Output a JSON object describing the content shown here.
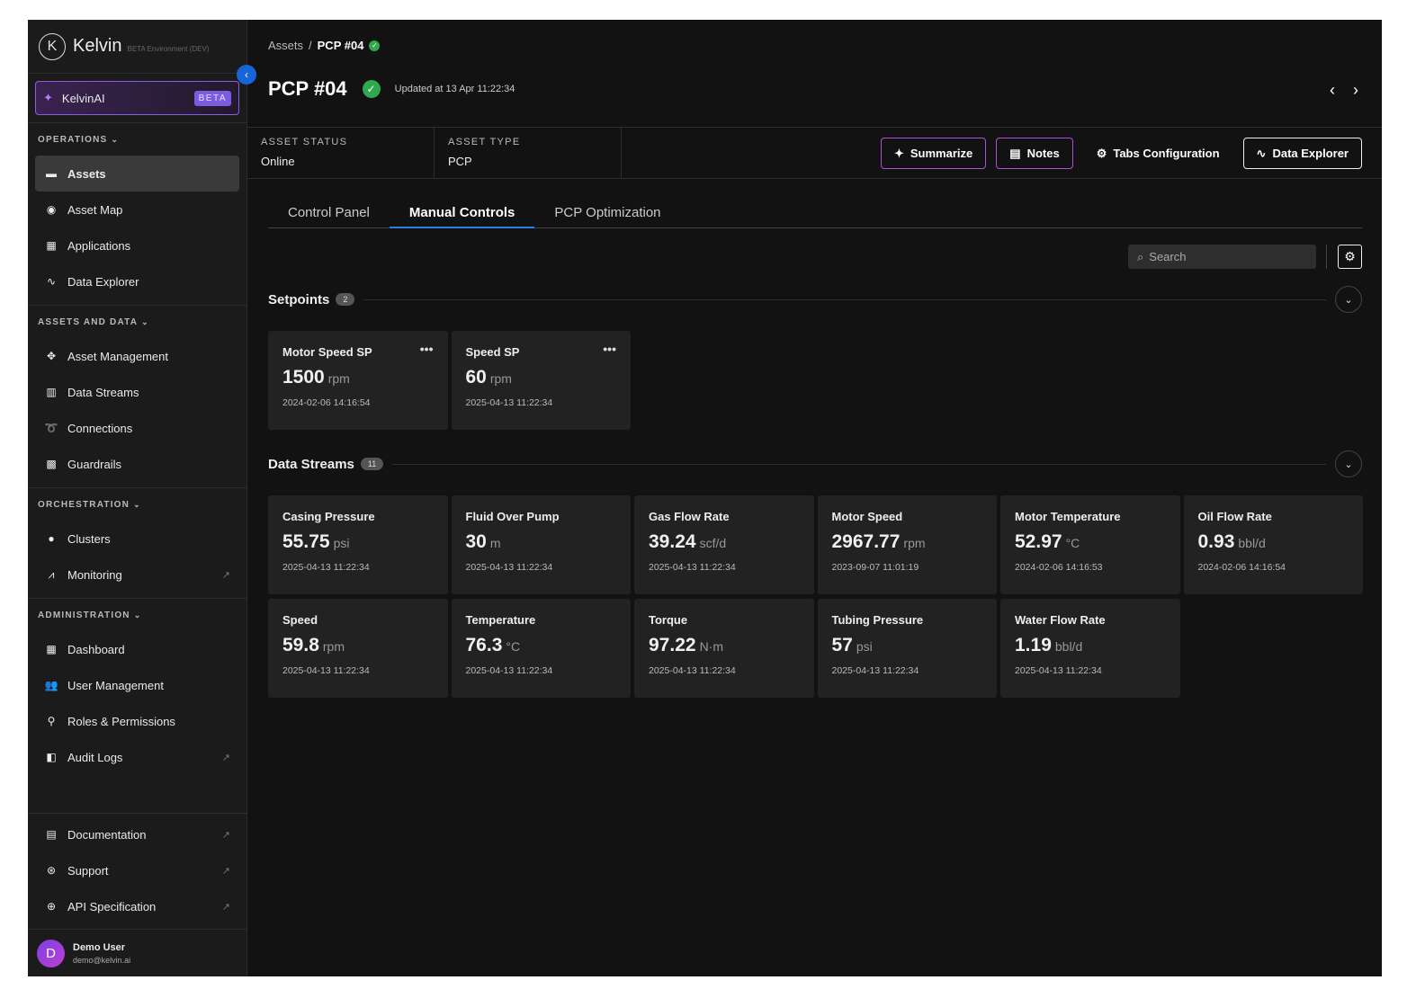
{
  "sidebar": {
    "brand": "Kelvin",
    "environment": "BETA Environment (DEV)",
    "ai": {
      "label": "KelvinAI",
      "badge": "BETA"
    },
    "sections": [
      {
        "title": "OPERATIONS",
        "items": [
          {
            "label": "Assets",
            "active": true
          },
          {
            "label": "Asset Map"
          },
          {
            "label": "Applications"
          },
          {
            "label": "Data Explorer"
          }
        ]
      },
      {
        "title": "ASSETS AND DATA",
        "items": [
          {
            "label": "Asset Management"
          },
          {
            "label": "Data Streams"
          },
          {
            "label": "Connections"
          },
          {
            "label": "Guardrails"
          }
        ]
      },
      {
        "title": "ORCHESTRATION",
        "items": [
          {
            "label": "Clusters"
          },
          {
            "label": "Monitoring",
            "external": true
          }
        ]
      },
      {
        "title": "ADMINISTRATION",
        "items": [
          {
            "label": "Dashboard"
          },
          {
            "label": "User Management"
          },
          {
            "label": "Roles & Permissions"
          },
          {
            "label": "Audit Logs",
            "external": true
          }
        ]
      }
    ],
    "footer_items": [
      {
        "label": "Documentation",
        "external": true
      },
      {
        "label": "Support",
        "external": true
      },
      {
        "label": "API Specification",
        "external": true
      }
    ],
    "user": {
      "initial": "D",
      "name": "Demo User",
      "email": "demo@kelvin.ai"
    }
  },
  "breadcrumb": [
    "Assets",
    "PCP #04"
  ],
  "header": {
    "title": "PCP #04",
    "updated": "Updated at 13 Apr 11:22:34"
  },
  "status": [
    {
      "label": "ASSET STATUS",
      "value": "Online"
    },
    {
      "label": "ASSET TYPE",
      "value": "PCP"
    }
  ],
  "actions": [
    "Summarize",
    "Notes",
    "Tabs Configuration",
    "Data Explorer"
  ],
  "tabs": [
    "Control Panel",
    "Manual Controls",
    "PCP Optimization"
  ],
  "search_placeholder": "Search",
  "setpoints": {
    "title": "Setpoints",
    "count": 2,
    "cards": [
      {
        "name": "Motor Speed SP",
        "value": 1500,
        "unit": "rpm",
        "time": "2024-02-06 14:16:54"
      },
      {
        "name": "Speed SP",
        "value": 60,
        "unit": "rpm",
        "time": "2025-04-13 11:22:34"
      }
    ]
  },
  "data_streams": {
    "title": "Data Streams",
    "count": 11,
    "cards": [
      {
        "name": "Casing Pressure",
        "value": 55.75,
        "unit": "psi",
        "time": "2025-04-13 11:22:34"
      },
      {
        "name": "Fluid Over Pump",
        "value": 30,
        "unit": "m",
        "time": "2025-04-13 11:22:34"
      },
      {
        "name": "Gas Flow Rate",
        "value": 39.24,
        "unit": "scf/d",
        "time": "2025-04-13 11:22:34"
      },
      {
        "name": "Motor Speed",
        "value": 2967.77,
        "unit": "rpm",
        "time": "2023-09-07 11:01:19"
      },
      {
        "name": "Motor Temperature",
        "value": 52.97,
        "unit": "°C",
        "time": "2024-02-06 14:16:53"
      },
      {
        "name": "Oil Flow Rate",
        "value": 0.93,
        "unit": "bbl/d",
        "time": "2024-02-06 14:16:54"
      },
      {
        "name": "Speed",
        "value": 59.8,
        "unit": "rpm",
        "time": "2025-04-13 11:22:34"
      },
      {
        "name": "Temperature",
        "value": 76.3,
        "unit": "°C",
        "time": "2025-04-13 11:22:34"
      },
      {
        "name": "Torque",
        "value": 97.22,
        "unit": "N·m",
        "time": "2025-04-13 11:22:34"
      },
      {
        "name": "Tubing Pressure",
        "value": 57,
        "unit": "psi",
        "time": "2025-04-13 11:22:34"
      },
      {
        "name": "Water Flow Rate",
        "value": 1.19,
        "unit": "bbl/d",
        "time": "2025-04-13 11:22:34"
      }
    ]
  }
}
